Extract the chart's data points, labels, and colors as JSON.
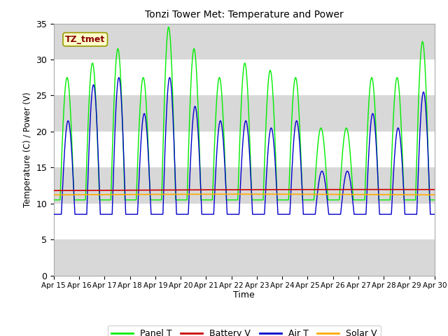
{
  "title": "Tonzi Tower Met: Temperature and Power",
  "xlabel": "Time",
  "ylabel": "Temperature (C) / Power (V)",
  "ylim": [
    0,
    35
  ],
  "xlim": [
    0,
    15
  ],
  "x_tick_labels": [
    "Apr 15",
    "Apr 16",
    "Apr 17",
    "Apr 18",
    "Apr 19",
    "Apr 20",
    "Apr 21",
    "Apr 22",
    "Apr 23",
    "Apr 24",
    "Apr 25",
    "Apr 26",
    "Apr 27",
    "Apr 28",
    "Apr 29",
    "Apr 30"
  ],
  "annotation_text": "TZ_tmet",
  "bg_color": "#d8d8d8",
  "band_color": "#e8e8e8",
  "panel_T_color": "#00ee00",
  "battery_V_color": "#cc0000",
  "air_T_color": "#0000cc",
  "solar_V_color": "#ffaa00",
  "legend_labels": [
    "Panel T",
    "Battery V",
    "Air T",
    "Solar V"
  ],
  "panel_amplitudes": [
    17,
    19,
    21,
    17,
    24,
    21,
    17,
    19,
    18,
    17,
    10,
    10,
    17,
    17,
    22,
    0
  ],
  "air_amplitudes": [
    13,
    18,
    19,
    14,
    19,
    15,
    13,
    13,
    12,
    13,
    6,
    6,
    14,
    12,
    17,
    0
  ],
  "panel_base": 10.5,
  "air_base": 8.5,
  "battery_mean": 11.8,
  "solar_mean": 11.2,
  "day_start": 0.25,
  "day_end": 0.8
}
